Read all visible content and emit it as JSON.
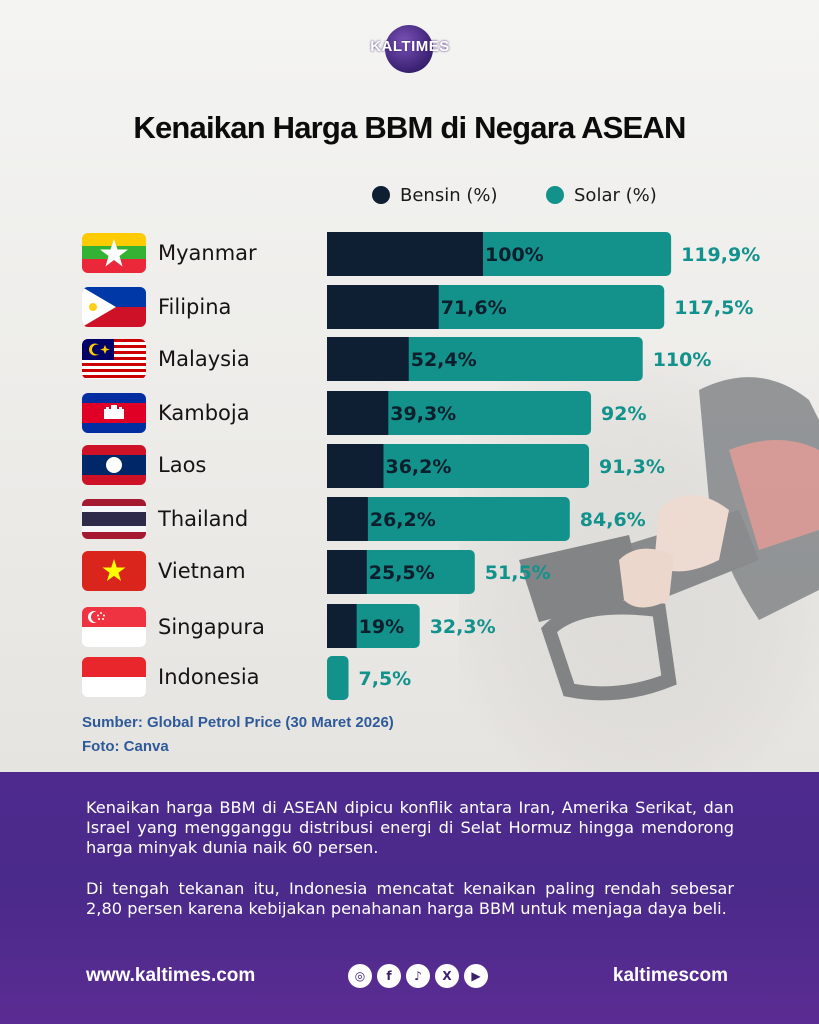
{
  "brand": {
    "logo_text": "KALTIMES"
  },
  "title": "Kenaikan Harga BBM di Negara ASEAN",
  "colors": {
    "bensin": "#0e1f33",
    "solar": "#13928b",
    "label_solar": "#12928c",
    "source": "#2e5a9a",
    "panel": "#4e2a8e"
  },
  "chart_data": {
    "type": "bar",
    "orientation": "horizontal",
    "stacked": "overlay",
    "categories": [
      "Myanmar",
      "Filipina",
      "Malaysia",
      "Kamboja",
      "Laos",
      "Thailand",
      "Vietnam",
      "Singapura",
      "Indonesia"
    ],
    "series": [
      {
        "name": "Bensin (%)",
        "values": [
          100,
          71.6,
          52.4,
          39.3,
          36.2,
          26.2,
          25.5,
          19,
          null
        ],
        "labels": [
          "100%",
          "71,6%",
          "52,4%",
          "39,3%",
          "36,2%",
          "26,2%",
          "25,5%",
          "19%",
          ""
        ]
      },
      {
        "name": "Solar (%)",
        "values": [
          119.9,
          117.5,
          110,
          92,
          91.3,
          84.6,
          51.5,
          32.3,
          7.5
        ],
        "labels": [
          "119,9%",
          "117,5%",
          "110%",
          "92%",
          "91,3%",
          "84,6%",
          "51,5%",
          "32,3%",
          "7,5%"
        ]
      }
    ],
    "legend_position": "top",
    "grid": false
  },
  "flags": [
    "myanmar-flag-icon",
    "philippines-flag-icon",
    "malaysia-flag-icon",
    "cambodia-flag-icon",
    "laos-flag-icon",
    "thailand-flag-icon",
    "vietnam-flag-icon",
    "singapore-flag-icon",
    "indonesia-flag-icon"
  ],
  "source": "Sumber: Global Petrol Price (30 Maret 2026)",
  "photo": "Foto: Canva",
  "paragraphs": [
    "Kenaikan harga BBM di ASEAN dipicu konflik antara Iran, Amerika Serikat, dan Israel yang mengganggu distribusi energi di Selat Hormuz hingga mendorong harga minyak dunia naik 60 persen.",
    "Di tengah tekanan itu, Indonesia mencatat kenaikan paling rendah sebesar 2,80 persen karena kebijakan penahanan harga BBM untuk menjaga daya beli."
  ],
  "footer": {
    "website": "www.kaltimes.com",
    "handle": "kaltimescom",
    "social_icons": [
      "instagram-icon",
      "facebook-icon",
      "tiktok-icon",
      "x-icon",
      "youtube-icon"
    ],
    "social_glyphs": [
      "◎",
      "f",
      "♪",
      "X",
      "▶"
    ]
  }
}
